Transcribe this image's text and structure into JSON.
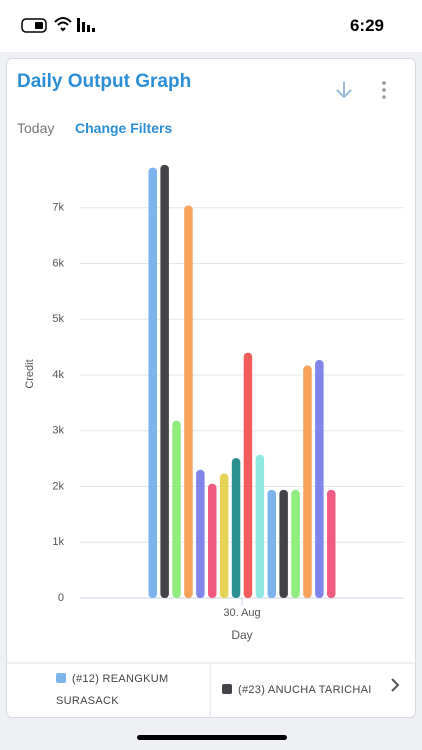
{
  "status_bar": {
    "time": "6:29"
  },
  "header": {
    "title": "Daily Output Graph"
  },
  "tabs": [
    "Today",
    "Change Filters"
  ],
  "chart_data": {
    "type": "bar",
    "categories": [
      "30. Aug"
    ],
    "x_label": "Day",
    "y_label": "Credit",
    "ylim": [
      0,
      8000
    ],
    "yticks": [
      {
        "value": 0,
        "label": "0"
      },
      {
        "value": 1000,
        "label": "1k"
      },
      {
        "value": 2000,
        "label": "2k"
      },
      {
        "value": 3000,
        "label": "3k"
      },
      {
        "value": 4000,
        "label": "4k"
      },
      {
        "value": 5000,
        "label": "5k"
      },
      {
        "value": 6000,
        "label": "6k"
      },
      {
        "value": 7000,
        "label": "7k"
      }
    ],
    "grid": true,
    "series": [
      {
        "name": "(#12) REANGKUM SURASACK",
        "color": "#7cb5ec",
        "values": [
          7720
        ]
      },
      {
        "name": "(#23) ANUCHA TARICHAI",
        "color": "#434348",
        "values": [
          7770
        ]
      },
      {
        "color": "#90ed7d",
        "values": [
          3180
        ]
      },
      {
        "color": "#f7a35c",
        "values": [
          7040
        ]
      },
      {
        "color": "#8085e9",
        "values": [
          2300
        ]
      },
      {
        "color": "#f15c80",
        "values": [
          2050
        ]
      },
      {
        "color": "#e4d354",
        "values": [
          2230
        ]
      },
      {
        "color": "#2b908f",
        "values": [
          2510
        ]
      },
      {
        "color": "#f45b5b",
        "values": [
          4400
        ]
      },
      {
        "color": "#91e8e1",
        "values": [
          2570
        ]
      },
      {
        "color": "#7cb5ec",
        "values": [
          1940
        ]
      },
      {
        "color": "#434348",
        "values": [
          1940
        ]
      },
      {
        "color": "#90ed7d",
        "values": [
          1940
        ]
      },
      {
        "color": "#f7a35c",
        "values": [
          4170
        ]
      },
      {
        "color": "#8085e9",
        "values": [
          4270
        ]
      },
      {
        "color": "#f15c80",
        "values": [
          1940
        ]
      }
    ]
  }
}
